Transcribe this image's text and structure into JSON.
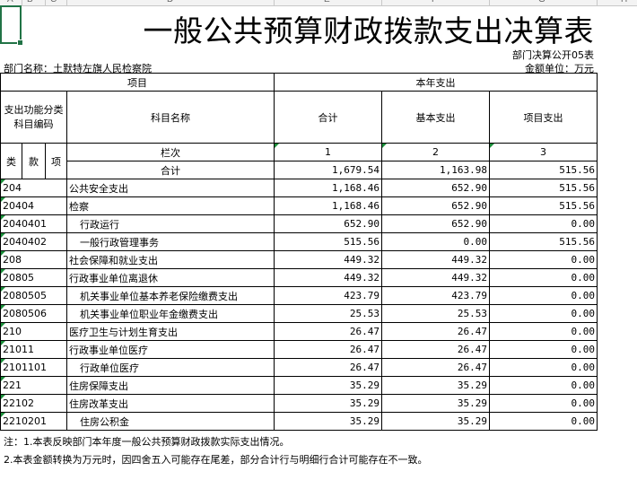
{
  "sheet": {
    "column_letters": [
      "A",
      "B",
      "C",
      "D",
      "E",
      "F",
      "G",
      "H"
    ]
  },
  "title": "一般公共预算财政拨款支出决算表",
  "form_no": "部门决算公开05表",
  "dept_label": "部门名称：土默特左旗人民检察院",
  "unit_label": "金额单位：万元",
  "header": {
    "item_group": "项目",
    "year_group": "本年支出",
    "func_code": "支出功能分类科目编码",
    "subject_name": "科目名称",
    "total": "合计",
    "basic": "基本支出",
    "project": "项目支出",
    "lei": "类",
    "kuan": "款",
    "xiang": "项",
    "lanci": "栏次",
    "col1": "1",
    "col2": "2",
    "col3": "3"
  },
  "summary": {
    "label": "合计",
    "total": "1,679.54",
    "basic": "1,163.98",
    "project": "515.56"
  },
  "rows": [
    {
      "code": "204",
      "name": "公共安全支出",
      "total": "1,168.46",
      "basic": "652.90",
      "project": "515.56"
    },
    {
      "code": "20404",
      "name": "检察",
      "total": "1,168.46",
      "basic": "652.90",
      "project": "515.56"
    },
    {
      "code": "2040401",
      "name": "行政运行",
      "total": "652.90",
      "basic": "652.90",
      "project": "0.00"
    },
    {
      "code": "2040402",
      "name": "一般行政管理事务",
      "total": "515.56",
      "basic": "0.00",
      "project": "515.56"
    },
    {
      "code": "208",
      "name": "社会保障和就业支出",
      "total": "449.32",
      "basic": "449.32",
      "project": "0.00"
    },
    {
      "code": "20805",
      "name": "行政事业单位离退休",
      "total": "449.32",
      "basic": "449.32",
      "project": "0.00"
    },
    {
      "code": "2080505",
      "name": "机关事业单位基本养老保险缴费支出",
      "total": "423.79",
      "basic": "423.79",
      "project": "0.00"
    },
    {
      "code": "2080506",
      "name": "机关事业单位职业年金缴费支出",
      "total": "25.53",
      "basic": "25.53",
      "project": "0.00"
    },
    {
      "code": "210",
      "name": "医疗卫生与计划生育支出",
      "total": "26.47",
      "basic": "26.47",
      "project": "0.00"
    },
    {
      "code": "21011",
      "name": "行政事业单位医疗",
      "total": "26.47",
      "basic": "26.47",
      "project": "0.00"
    },
    {
      "code": "2101101",
      "name": "行政单位医疗",
      "total": "26.47",
      "basic": "26.47",
      "project": "0.00"
    },
    {
      "code": "221",
      "name": "住房保障支出",
      "total": "35.29",
      "basic": "35.29",
      "project": "0.00"
    },
    {
      "code": "22102",
      "name": "住房改革支出",
      "total": "35.29",
      "basic": "35.29",
      "project": "0.00"
    },
    {
      "code": "2210201",
      "name": "住房公积金",
      "total": "35.29",
      "basic": "35.29",
      "project": "0.00"
    }
  ],
  "notes": [
    "注：1.本表反映部门本年度一般公共预算财政拨款实际支出情况。",
    "2.本表金额转换为万元时，因四舍五入可能存在尾差，部分合计行与明细行合计可能存在不一致。"
  ]
}
